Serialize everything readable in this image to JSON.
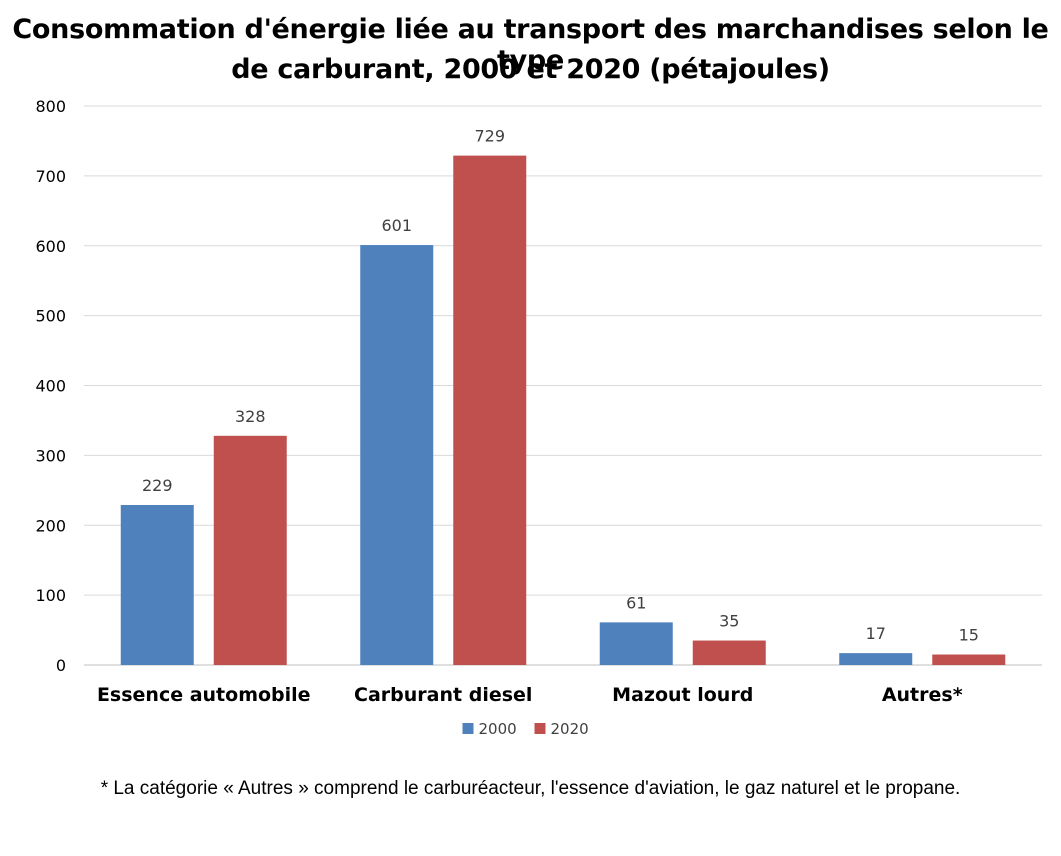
{
  "chart_data": {
    "type": "bar",
    "title_lines": [
      "Consommation d'énergie liée au transport des marchandises selon le type",
      "de carburant, 2000 et 2020 (pétajoules)"
    ],
    "xlabel": "",
    "ylabel": "",
    "categories": [
      "Essence automobile",
      "Carburant diesel",
      "Mazout lourd",
      "Autres*"
    ],
    "series": [
      {
        "name": "2000",
        "values": [
          229,
          601,
          61,
          17
        ],
        "color": "#4F81BD"
      },
      {
        "name": "2020",
        "values": [
          328,
          729,
          35,
          15
        ],
        "color": "#C0504D"
      }
    ],
    "ylim": [
      0,
      800
    ],
    "yticks": [
      0,
      100,
      200,
      300,
      400,
      500,
      600,
      700,
      800
    ],
    "grid": true,
    "legend_position": "bottom",
    "data_labels": true
  },
  "footnote": "* La catégorie « Autres » comprend le carburéacteur, l'essence d'aviation, le gaz naturel et le propane."
}
